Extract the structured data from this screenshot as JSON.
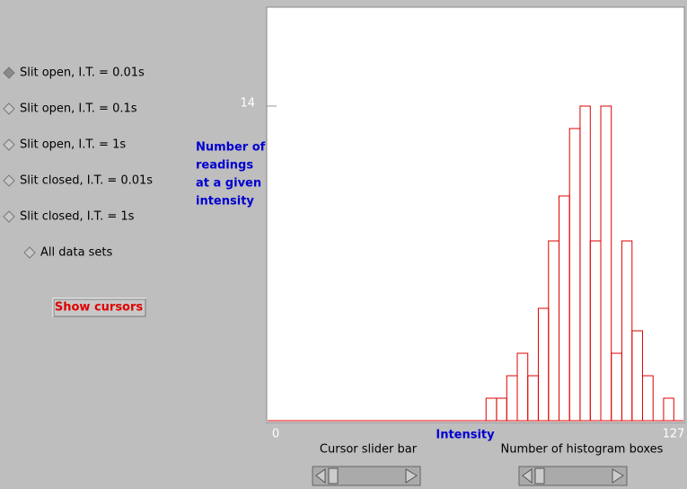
{
  "options": [
    "Slit open, I.T. = 0.01s",
    "Slit open, I.T. = 0.1s",
    "Slit open, I.T. = 1s",
    "Slit closed, I.T. = 0.01s",
    "Slit closed, I.T. = 1s",
    "All data sets"
  ],
  "button": "Show cursors",
  "sliders": [
    "Cursor slider bar",
    "Number of histogram boxes"
  ],
  "chart_data": {
    "type": "histogram",
    "y_label_lines": [
      "Number of",
      "readings",
      "at a given",
      "intensity"
    ],
    "x_label": "Intensity",
    "bins": [
      66.7,
      69.9,
      73.0,
      76.2,
      79.4,
      82.6,
      85.7,
      88.9,
      92.1,
      95.3,
      98.4,
      101.6,
      104.8,
      108.0,
      111.1,
      114.3,
      117.5,
      120.7,
      123.8
    ],
    "values": [
      1,
      1,
      2,
      3,
      2,
      5,
      8,
      10,
      13,
      14,
      8,
      14,
      3,
      8,
      4,
      2,
      0,
      1
    ],
    "color": "#e00000",
    "xlim": [
      0,
      127
    ],
    "xticks": [
      0,
      127
    ],
    "ylim": [
      0,
      18.4
    ],
    "yticks": [
      14
    ]
  }
}
